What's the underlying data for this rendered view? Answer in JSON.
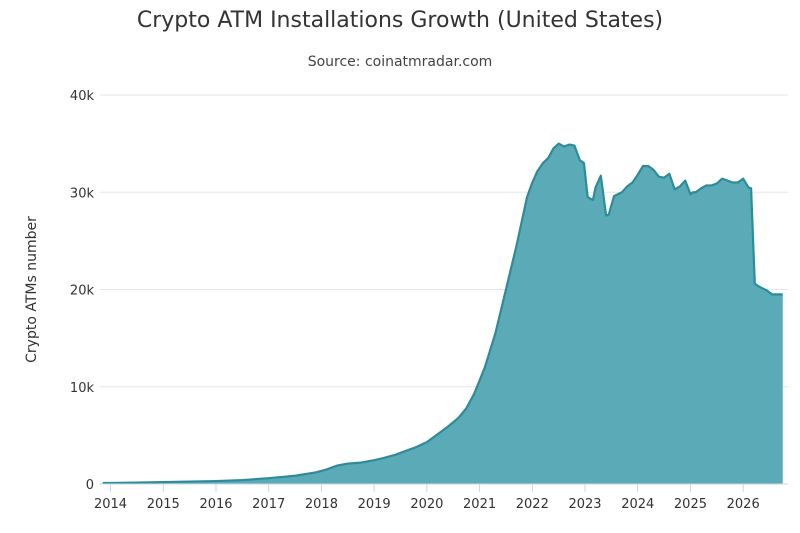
{
  "chart_data": {
    "type": "area",
    "title": "Crypto ATM Installations Growth (United States)",
    "subtitle": "Source: coinatmradar.com",
    "xlabel": "",
    "ylabel": "Crypto ATMs number",
    "xlim": [
      2013.8,
      2026.85
    ],
    "ylim": [
      0,
      40000
    ],
    "y_ticks": [
      {
        "value": 0,
        "label": "0"
      },
      {
        "value": 10000,
        "label": "10k"
      },
      {
        "value": 20000,
        "label": "20k"
      },
      {
        "value": 30000,
        "label": "30k"
      },
      {
        "value": 40000,
        "label": "40k"
      }
    ],
    "x_ticks": [
      {
        "value": 2014,
        "label": "2014"
      },
      {
        "value": 2015,
        "label": "2015"
      },
      {
        "value": 2016,
        "label": "2016"
      },
      {
        "value": 2017,
        "label": "2017"
      },
      {
        "value": 2018,
        "label": "2018"
      },
      {
        "value": 2019,
        "label": "2019"
      },
      {
        "value": 2020,
        "label": "2020"
      },
      {
        "value": 2021,
        "label": "2021"
      },
      {
        "value": 2022,
        "label": "2022"
      },
      {
        "value": 2023,
        "label": "2023"
      },
      {
        "value": 2024,
        "label": "2024"
      },
      {
        "value": 2025,
        "label": "2025"
      },
      {
        "value": 2026,
        "label": "2026"
      }
    ],
    "grid": true,
    "legend": "none",
    "colors": {
      "fill": "#5aaab7",
      "line": "#2e8c9a",
      "grid": "#e6e6e6",
      "axis": "#ccd6eb"
    },
    "series": [
      {
        "x": [
          2013.85,
          2014.0,
          2014.5,
          2015.0,
          2015.5,
          2016.0,
          2016.5,
          2017.0,
          2017.5,
          2017.9,
          2018.1,
          2018.3,
          2018.5,
          2018.75,
          2019.0,
          2019.2,
          2019.4,
          2019.6,
          2019.8,
          2020.0,
          2020.2,
          2020.4,
          2020.6,
          2020.75,
          2020.9,
          2021.1,
          2021.3,
          2021.5,
          2021.7,
          2021.9,
          2022.0,
          2022.1,
          2022.2,
          2022.3,
          2022.4,
          2022.5,
          2022.6,
          2022.7,
          2022.8,
          2022.9,
          2022.98,
          2023.05,
          2023.15,
          2023.2,
          2023.3,
          2023.4,
          2023.45,
          2023.55,
          2023.7,
          2023.8,
          2023.9,
          2024.0,
          2024.1,
          2024.2,
          2024.3,
          2024.4,
          2024.5,
          2024.6,
          2024.7,
          2024.8,
          2024.9,
          2025.0,
          2025.05,
          2025.1,
          2025.2,
          2025.3,
          2025.4,
          2025.5,
          2025.6,
          2025.7,
          2025.8,
          2025.9,
          2026.0,
          2026.1,
          2026.15,
          2026.22,
          2026.3,
          2026.45,
          2026.55,
          2026.62,
          2026.75
        ],
        "y": [
          100,
          100,
          150,
          200,
          250,
          300,
          400,
          600,
          850,
          1200,
          1500,
          1900,
          2100,
          2200,
          2450,
          2700,
          3000,
          3400,
          3800,
          4300,
          5100,
          5900,
          6800,
          7800,
          9300,
          12000,
          15500,
          20000,
          24500,
          29500,
          31000,
          32200,
          33000,
          33500,
          34500,
          35000,
          34700,
          34900,
          34800,
          33300,
          33000,
          29500,
          29200,
          30500,
          31700,
          27600,
          27700,
          29600,
          30000,
          30600,
          31000,
          31800,
          32700,
          32700,
          32300,
          31600,
          31500,
          31900,
          30300,
          30600,
          31200,
          29800,
          30000,
          30000,
          30400,
          30700,
          30700,
          30900,
          31400,
          31200,
          31000,
          31000,
          31400,
          30500,
          30400,
          20600,
          20300,
          19900,
          19500,
          19500,
          19500
        ]
      }
    ]
  }
}
